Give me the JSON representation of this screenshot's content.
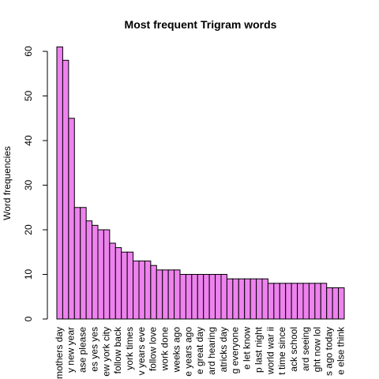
{
  "chart_data": {
    "type": "bar",
    "title": "Most frequent Trigram words",
    "ylabel": "Word frequencies",
    "categories": [
      "mothers day",
      null,
      "y new year",
      null,
      "ase please",
      null,
      "es yes yes",
      null,
      "ew york city",
      null,
      "follow back",
      null,
      "york times",
      null,
      "v years eve",
      null,
      "follow love",
      null,
      "work done",
      null,
      "weeks ago",
      null,
      "e years ago",
      null,
      "e great day",
      null,
      "ard hearing",
      null,
      "atricks day",
      null,
      "g everyone",
      null,
      "e let know",
      null,
      "p last night",
      null,
      "world war ii",
      null,
      "t time since",
      null,
      "ack school",
      null,
      "ard seeing",
      null,
      "ght now lol",
      null,
      "s ago today",
      null,
      "e else think"
    ],
    "values": [
      61,
      58,
      45,
      25,
      25,
      22,
      21,
      20,
      20,
      17,
      16,
      15,
      15,
      13,
      13,
      13,
      12,
      11,
      11,
      11,
      11,
      10,
      10,
      10,
      10,
      10,
      10,
      10,
      10,
      9,
      9,
      9,
      9,
      9,
      9,
      9,
      8,
      8,
      8,
      8,
      8,
      8,
      8,
      8,
      8,
      8,
      7,
      7,
      7
    ],
    "color": "#ee82ee",
    "ylim": [
      0,
      61
    ],
    "yticks": [
      0,
      10,
      20,
      30,
      40,
      50,
      60
    ]
  }
}
